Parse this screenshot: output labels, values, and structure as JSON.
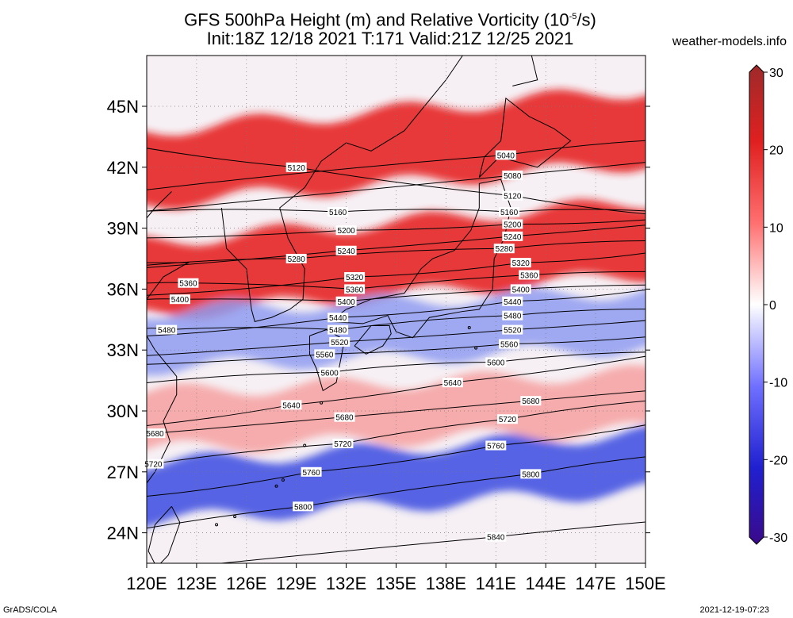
{
  "title": {
    "line1_prefix": "GFS 500hPa Height (m) and Relative Vorticity (10",
    "line1_exp": "-5",
    "line1_suffix": "/s)",
    "line2": "Init:18Z 12/18 2021 T:171 Valid:21Z 12/25 2021"
  },
  "site": "weather-models.info",
  "footer": {
    "left": "GrADS/COLA",
    "right": "2021-12-19-07:23"
  },
  "map": {
    "lon_range": [
      120,
      150
    ],
    "lat_range": [
      22.5,
      47.5
    ],
    "lon_ticks": [
      "120E",
      "123E",
      "126E",
      "129E",
      "132E",
      "135E",
      "138E",
      "141E",
      "144E",
      "147E",
      "150E"
    ],
    "lat_ticks": [
      {
        "lat": 45,
        "label": "45N"
      },
      {
        "lat": 42,
        "label": "42N"
      },
      {
        "lat": 39,
        "label": "39N"
      },
      {
        "lat": 36,
        "label": "36N"
      },
      {
        "lat": 33,
        "label": "33N"
      },
      {
        "lat": 30,
        "label": "30N"
      },
      {
        "lat": 27,
        "label": "27N"
      },
      {
        "lat": 24,
        "label": "24N"
      }
    ]
  },
  "colorbar": {
    "ticks": [
      "30",
      "20",
      "10",
      "0",
      "-10",
      "-20",
      "-30"
    ],
    "min": -30,
    "max": 30
  },
  "chart_data": {
    "type": "heatmap",
    "variables": [
      "500hPa geopotential height (m)",
      "relative vorticity (10^-5/s)"
    ],
    "vorticity_bands": [
      {
        "sign": "positive",
        "center_lat_west": 36.5,
        "center_lat_east": 38.5,
        "strength": 18
      },
      {
        "sign": "positive",
        "center_lat_west": 42.0,
        "center_lat_east": 44.0,
        "strength": 22
      },
      {
        "sign": "negative",
        "center_lat_west": 33.5,
        "center_lat_east": 34.5,
        "strength": -8
      },
      {
        "sign": "negative",
        "center_lat_west": 26.0,
        "center_lat_east": 27.5,
        "strength": -14
      },
      {
        "sign": "positive",
        "center_lat_west": 29.5,
        "center_lat_east": 30.5,
        "strength": 5
      }
    ],
    "contours": [
      {
        "value": 5040,
        "label_lon": 141.6,
        "label_lat": 42.6
      },
      {
        "value": 5080,
        "label_lon": 142.0,
        "label_lat": 41.6
      },
      {
        "value": 5120,
        "label_lon": 129.0,
        "label_lat": 42.0
      },
      {
        "value": 5120,
        "label_lon": 142.0,
        "label_lat": 40.6
      },
      {
        "value": 5160,
        "label_lon": 131.5,
        "label_lat": 39.8
      },
      {
        "value": 5160,
        "label_lon": 141.8,
        "label_lat": 39.8
      },
      {
        "value": 5200,
        "label_lon": 132.0,
        "label_lat": 38.9
      },
      {
        "value": 5200,
        "label_lon": 142.0,
        "label_lat": 39.2
      },
      {
        "value": 5240,
        "label_lon": 132.0,
        "label_lat": 37.9
      },
      {
        "value": 5240,
        "label_lon": 142.0,
        "label_lat": 38.6
      },
      {
        "value": 5280,
        "label_lon": 129.0,
        "label_lat": 37.5
      },
      {
        "value": 5280,
        "label_lon": 141.5,
        "label_lat": 38.0
      },
      {
        "value": 5320,
        "label_lon": 132.5,
        "label_lat": 36.6
      },
      {
        "value": 5320,
        "label_lon": 142.5,
        "label_lat": 37.3
      },
      {
        "value": 5360,
        "label_lon": 122.5,
        "label_lat": 36.3
      },
      {
        "value": 5360,
        "label_lon": 132.5,
        "label_lat": 36.0
      },
      {
        "value": 5360,
        "label_lon": 143.0,
        "label_lat": 36.7
      },
      {
        "value": 5400,
        "label_lon": 122.0,
        "label_lat": 35.5
      },
      {
        "value": 5400,
        "label_lon": 132.0,
        "label_lat": 35.4
      },
      {
        "value": 5400,
        "label_lon": 142.5,
        "label_lat": 36.0
      },
      {
        "value": 5440,
        "label_lon": 131.5,
        "label_lat": 34.6
      },
      {
        "value": 5440,
        "label_lon": 142.0,
        "label_lat": 35.4
      },
      {
        "value": 5480,
        "label_lon": 121.2,
        "label_lat": 34.0
      },
      {
        "value": 5480,
        "label_lon": 131.5,
        "label_lat": 34.0
      },
      {
        "value": 5480,
        "label_lon": 142.0,
        "label_lat": 34.7
      },
      {
        "value": 5520,
        "label_lon": 131.6,
        "label_lat": 33.4
      },
      {
        "value": 5520,
        "label_lon": 142.0,
        "label_lat": 34.0
      },
      {
        "value": 5560,
        "label_lon": 130.7,
        "label_lat": 32.8
      },
      {
        "value": 5560,
        "label_lon": 141.8,
        "label_lat": 33.3
      },
      {
        "value": 5600,
        "label_lon": 131.0,
        "label_lat": 31.9
      },
      {
        "value": 5600,
        "label_lon": 141.0,
        "label_lat": 32.4
      },
      {
        "value": 5640,
        "label_lon": 128.7,
        "label_lat": 30.3
      },
      {
        "value": 5640,
        "label_lon": 138.4,
        "label_lat": 31.4
      },
      {
        "value": 5680,
        "label_lon": 120.5,
        "label_lat": 28.9
      },
      {
        "value": 5680,
        "label_lon": 131.9,
        "label_lat": 29.7
      },
      {
        "value": 5680,
        "label_lon": 143.1,
        "label_lat": 30.5
      },
      {
        "value": 5720,
        "label_lon": 120.4,
        "label_lat": 27.4
      },
      {
        "value": 5720,
        "label_lon": 131.8,
        "label_lat": 28.4
      },
      {
        "value": 5720,
        "label_lon": 141.7,
        "label_lat": 29.6
      },
      {
        "value": 5760,
        "label_lon": 129.9,
        "label_lat": 27.0
      },
      {
        "value": 5760,
        "label_lon": 141.0,
        "label_lat": 28.3
      },
      {
        "value": 5800,
        "label_lon": 129.4,
        "label_lat": 25.3
      },
      {
        "value": 5800,
        "label_lon": 143.1,
        "label_lat": 26.9
      },
      {
        "value": 5840,
        "label_lon": 141.0,
        "label_lat": 23.8
      }
    ]
  }
}
